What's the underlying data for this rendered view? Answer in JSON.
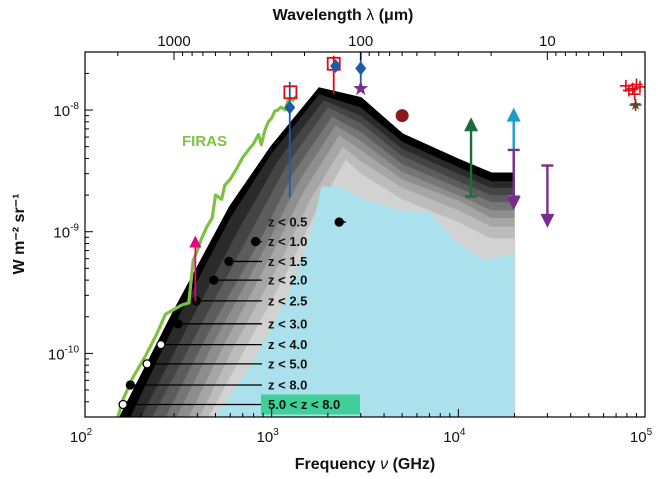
{
  "chart_data": {
    "type": "area",
    "title": "",
    "xlabel_bottom_prefix": "Frequency ",
    "xlabel_bottom_var": "ν",
    "xlabel_bottom_suffix": " (GHz)",
    "xlabel_top_prefix": "Wavelength ",
    "xlabel_top_var": "λ",
    "xlabel_top_suffix": " (μm)",
    "ylabel": "W m⁻² sr⁻¹",
    "xscale": "log",
    "yscale": "log",
    "xlim": [
      100,
      100000
    ],
    "ylim": [
      3e-11,
      3e-08
    ],
    "x_ticks": [
      {
        "value": 100,
        "base": "10",
        "exp": "2"
      },
      {
        "value": 1000,
        "base": "10",
        "exp": "3"
      },
      {
        "value": 10000,
        "base": "10",
        "exp": "4"
      },
      {
        "value": 100000,
        "base": "10",
        "exp": "5"
      }
    ],
    "y_ticks": [
      {
        "value": 1e-10,
        "base": "10",
        "exp": "-10"
      },
      {
        "value": 1e-09,
        "base": "10",
        "exp": "-9"
      },
      {
        "value": 1e-08,
        "base": "10",
        "exp": "-8"
      }
    ],
    "top_ticks": [
      {
        "wavelength_um": 1000,
        "label": "1000"
      },
      {
        "wavelength_um": 100,
        "label": "100"
      },
      {
        "wavelength_um": 10,
        "label": "10"
      }
    ],
    "cumulative_bands": [
      {
        "label": "5.0 < z < 8.0",
        "color": "#000000",
        "points": [
          [
            155,
            3e-11
          ],
          [
            300,
            2.2e-10
          ],
          [
            600,
            1.6e-09
          ],
          [
            1000,
            5e-09
          ],
          [
            1800,
            1.5e-08
          ],
          [
            3000,
            1.25e-08
          ],
          [
            5000,
            6.3e-09
          ],
          [
            10000,
            3.9e-09
          ],
          [
            15000,
            3e-09
          ],
          [
            20000,
            3e-09
          ]
        ]
      },
      {
        "label": "z < 8.0",
        "color": "#2a2a2a",
        "points": [
          [
            175,
            3e-11
          ],
          [
            300,
            1.7e-10
          ],
          [
            600,
            1.3e-09
          ],
          [
            1000,
            4.4e-09
          ],
          [
            1800,
            1.35e-08
          ],
          [
            3000,
            1.05e-08
          ],
          [
            5000,
            5.5e-09
          ],
          [
            10000,
            3.4e-09
          ],
          [
            15000,
            2.6e-09
          ],
          [
            20000,
            2.6e-09
          ]
        ]
      },
      {
        "label": "z < 5.0",
        "color": "#444444",
        "points": [
          [
            200,
            3e-11
          ],
          [
            350,
            1.6e-10
          ],
          [
            700,
            1.2e-09
          ],
          [
            1100,
            4e-09
          ],
          [
            1900,
            1.2e-08
          ],
          [
            3000,
            9e-09
          ],
          [
            5000,
            4.8e-09
          ],
          [
            10000,
            3e-09
          ],
          [
            15000,
            2.3e-09
          ],
          [
            20000,
            2.3e-09
          ]
        ]
      },
      {
        "label": "z < 4.0",
        "color": "#5c5c5c",
        "points": [
          [
            230,
            3e-11
          ],
          [
            400,
            1.5e-10
          ],
          [
            800,
            1.1e-09
          ],
          [
            1200,
            3.5e-09
          ],
          [
            2000,
            1.05e-08
          ],
          [
            3000,
            7.8e-09
          ],
          [
            5000,
            4.2e-09
          ],
          [
            10000,
            2.6e-09
          ],
          [
            15000,
            2e-09
          ],
          [
            20000,
            2e-09
          ]
        ]
      },
      {
        "label": "z < 3.0",
        "color": "#767676",
        "points": [
          [
            270,
            3e-11
          ],
          [
            450,
            1.4e-10
          ],
          [
            900,
            9.5e-10
          ],
          [
            1300,
            3e-09
          ],
          [
            2100,
            8.8e-09
          ],
          [
            3000,
            6.6e-09
          ],
          [
            5000,
            3.6e-09
          ],
          [
            10000,
            2.3e-09
          ],
          [
            15000,
            1.75e-09
          ],
          [
            20000,
            1.75e-09
          ]
        ]
      },
      {
        "label": "z < 2.5",
        "color": "#8e8e8e",
        "points": [
          [
            310,
            3e-11
          ],
          [
            500,
            1.3e-10
          ],
          [
            950,
            8e-10
          ],
          [
            1400,
            2.6e-09
          ],
          [
            2200,
            7.5e-09
          ],
          [
            3000,
            5.6e-09
          ],
          [
            5000,
            3.1e-09
          ],
          [
            10000,
            2e-09
          ],
          [
            15000,
            1.5e-09
          ],
          [
            20000,
            1.5e-09
          ]
        ]
      },
      {
        "label": "z < 2.0",
        "color": "#a6a6a6",
        "points": [
          [
            360,
            3e-11
          ],
          [
            560,
            1.2e-10
          ],
          [
            1000,
            6.5e-10
          ],
          [
            1500,
            2.2e-09
          ],
          [
            2300,
            6.2e-09
          ],
          [
            3000,
            4.7e-09
          ],
          [
            5000,
            2.7e-09
          ],
          [
            10000,
            1.8e-09
          ],
          [
            15000,
            1.3e-09
          ],
          [
            20000,
            1.3e-09
          ]
        ]
      },
      {
        "label": "z < 1.5",
        "color": "#bcbcbc",
        "points": [
          [
            410,
            3e-11
          ],
          [
            620,
            1.1e-10
          ],
          [
            1100,
            5.5e-10
          ],
          [
            1600,
            1.8e-09
          ],
          [
            2400,
            5e-09
          ],
          [
            3000,
            3.8e-09
          ],
          [
            5000,
            2.3e-09
          ],
          [
            10000,
            1.5e-09
          ],
          [
            15000,
            1.1e-09
          ],
          [
            20000,
            1.1e-09
          ]
        ]
      },
      {
        "label": "z < 1.0",
        "color": "#d2d2d2",
        "points": [
          [
            460,
            3e-11
          ],
          [
            700,
            1e-10
          ],
          [
            1200,
            4.6e-10
          ],
          [
            1700,
            1.4e-09
          ],
          [
            2500,
            3.9e-09
          ],
          [
            3000,
            3e-09
          ],
          [
            5000,
            1.85e-09
          ],
          [
            10000,
            1.2e-09
          ],
          [
            15000,
            8.8e-10
          ],
          [
            20000,
            8.8e-10
          ]
        ]
      },
      {
        "label": "z < 0.5",
        "color": "#abe1ec",
        "points": [
          [
            500,
            3e-11
          ],
          [
            800,
            8.5e-11
          ],
          [
            1200,
            2.8e-10
          ],
          [
            1600,
            9e-10
          ],
          [
            1850,
            2.35e-09
          ],
          [
            2300,
            2.35e-09
          ],
          [
            3000,
            1.9e-09
          ],
          [
            5000,
            1.5e-09
          ],
          [
            7000,
            1.45e-09
          ],
          [
            10000,
            8e-10
          ],
          [
            14000,
            5.8e-10
          ],
          [
            20000,
            6.7e-10
          ],
          [
            20000,
            3e-11
          ]
        ]
      }
    ],
    "z_labels": [
      {
        "label": "z < 0.5",
        "dot_x": 2300,
        "dot_y": 1.2e-09,
        "filled": true
      },
      {
        "label": "z < 1.0",
        "dot_x": 820,
        "dot_y": 8.3e-10,
        "filled": true
      },
      {
        "label": "z < 1.5",
        "dot_x": 590,
        "dot_y": 5.7e-10,
        "filled": true
      },
      {
        "label": "z < 2.0",
        "dot_x": 490,
        "dot_y": 4e-10,
        "filled": true
      },
      {
        "label": "z < 2.5",
        "dot_x": 395,
        "dot_y": 2.7e-10,
        "filled": true
      },
      {
        "label": "z < 3.0",
        "dot_x": 315,
        "dot_y": 1.75e-10,
        "filled": true
      },
      {
        "label": "z < 4.0",
        "dot_x": 255,
        "dot_y": 1.18e-10,
        "filled": false
      },
      {
        "label": "z < 5.0",
        "dot_x": 215,
        "dot_y": 8.2e-11,
        "filled": false
      },
      {
        "label": "z < 8.0",
        "dot_x": 175,
        "dot_y": 5.5e-11,
        "filled": true
      },
      {
        "label": "5.0 < z < 8.0",
        "dot_x": 160,
        "dot_y": 3.8e-11,
        "filled": false
      }
    ],
    "firas": {
      "label": "FIRAS",
      "color": "#7dc242",
      "points": [
        [
          150,
          3e-11
        ],
        [
          160,
          4.2e-11
        ],
        [
          180,
          6.3e-11
        ],
        [
          210,
          9.4e-11
        ],
        [
          240,
          1.4e-10
        ],
        [
          270,
          2.1e-10
        ],
        [
          300,
          2.3e-10
        ],
        [
          330,
          2.5e-10
        ],
        [
          360,
          2.6e-10
        ],
        [
          380,
          5.8e-10
        ],
        [
          400,
          7e-10
        ],
        [
          420,
          8.7e-10
        ],
        [
          450,
          1.1e-09
        ],
        [
          480,
          1.3e-09
        ],
        [
          500,
          2e-09
        ],
        [
          540,
          1.85e-09
        ],
        [
          560,
          2.4e-09
        ],
        [
          600,
          2.7e-09
        ],
        [
          650,
          3.3e-09
        ],
        [
          700,
          4.1e-09
        ],
        [
          760,
          4.8e-09
        ],
        [
          800,
          5.3e-09
        ],
        [
          850,
          6.3e-09
        ],
        [
          880,
          5.2e-09
        ],
        [
          920,
          6.8e-09
        ],
        [
          960,
          8e-09
        ],
        [
          1000,
          8.6e-09
        ],
        [
          1040,
          9.8e-09
        ],
        [
          1080,
          1e-08
        ],
        [
          1120,
          1.06e-08
        ],
        [
          1180,
          1e-08
        ],
        [
          1220,
          1.18e-08
        ],
        [
          1260,
          1.25e-08
        ],
        [
          1300,
          1.2e-08
        ],
        [
          1350,
          1.3e-08
        ]
      ]
    },
    "measurements": [
      {
        "name": "magenta-triangle",
        "x": 390,
        "y": 8e-10,
        "err_low": 2.7e-10,
        "err_high": 8.7e-10,
        "marker": "triangle-up",
        "color": "#e6007e"
      },
      {
        "name": "blue-diamond-1",
        "x": 1250,
        "y": 1.05e-08,
        "err_low": 1.9e-09,
        "err_high": 1.7e-08,
        "marker": "diamond",
        "color": "#1f5aa6"
      },
      {
        "name": "red-square-1",
        "x": 1260,
        "y": 1.4e-08,
        "err_low": null,
        "err_high": null,
        "marker": "square-open",
        "color": "#e30613"
      },
      {
        "name": "red-square-2",
        "x": 2150,
        "y": 2.4e-08,
        "err_low": 1.35e-08,
        "err_high": 2.8e-08,
        "marker": "square-open",
        "color": "#e30613"
      },
      {
        "name": "blue-diamond-2",
        "x": 2200,
        "y": 2.3e-08,
        "err_low": null,
        "err_high": null,
        "marker": "diamond",
        "color": "#1f5aa6"
      },
      {
        "name": "blue-diamond-3",
        "x": 3000,
        "y": 2.2e-08,
        "err_low": 1.6e-08,
        "err_high": 3e-08,
        "marker": "diamond",
        "color": "#1f5aa6"
      },
      {
        "name": "purple-star",
        "x": 3000,
        "y": 1.5e-08,
        "err_low": null,
        "err_high": null,
        "marker": "star",
        "color": "#7b2d8e"
      },
      {
        "name": "darkred-circle",
        "x": 5000,
        "y": 9e-09,
        "err_low": null,
        "err_high": null,
        "marker": "circle",
        "color": "#8b1a1a"
      }
    ],
    "limits": [
      {
        "name": "darkgreen-lower-limit",
        "x": 11700,
        "y_low": 1.95e-09,
        "y_high": 7.5e-09,
        "direction": "up",
        "color": "#1c6b3c"
      },
      {
        "name": "cyan-lower-limit",
        "x": 19800,
        "y_low": 1.95e-09,
        "y_high": 9e-09,
        "direction": "up",
        "color": "#1c9dc9"
      },
      {
        "name": "purple-upper-limit-1",
        "x": 19800,
        "y_low": 1.75e-09,
        "y_high": 4.7e-09,
        "direction": "down",
        "color": "#7b2d8e"
      },
      {
        "name": "purple-upper-limit-2",
        "x": 30000,
        "y_low": 1.25e-09,
        "y_high": 3.5e-09,
        "direction": "down",
        "color": "#7b2d8e"
      }
    ],
    "nir_points": [
      {
        "x": 79000,
        "y": 1.58e-08,
        "color": "#e30613"
      },
      {
        "x": 82000,
        "y": 1.45e-08,
        "color": "#e30613"
      },
      {
        "x": 86000,
        "y": 1.5e-08,
        "color": "#e30613"
      },
      {
        "x": 90000,
        "y": 1.62e-08,
        "color": "#e30613"
      },
      {
        "x": 94000,
        "y": 1.55e-08,
        "color": "#e30613"
      },
      {
        "x": 88000,
        "y": 1.35e-08,
        "color": "#e30613"
      },
      {
        "x": 89000,
        "y": 1.1e-08,
        "color": "#6b4226"
      }
    ]
  }
}
